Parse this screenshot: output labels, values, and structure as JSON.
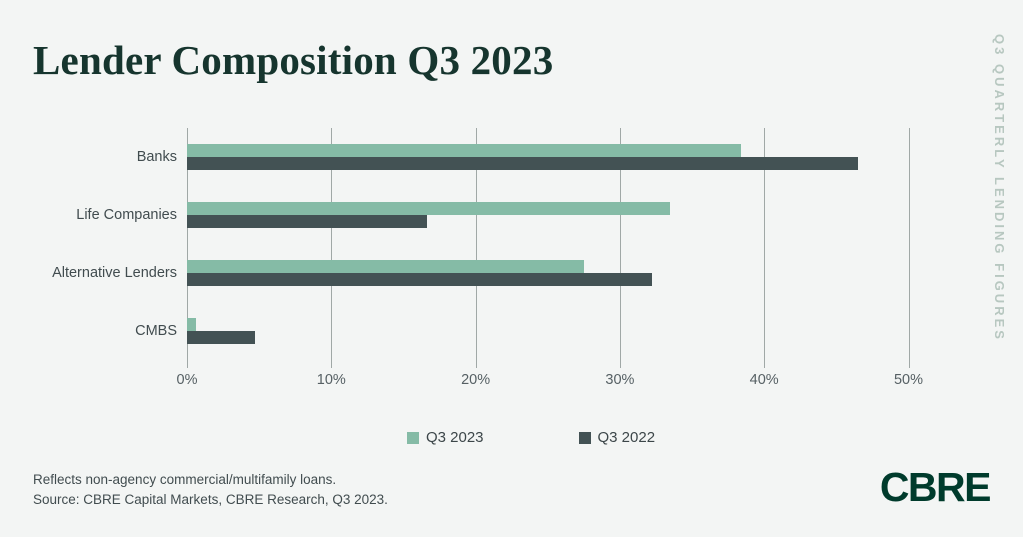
{
  "page": {
    "title": "Lender Composition Q3 2023",
    "side_label": "Q3 QUARTERLY LENDING FIGURES",
    "footnote_line1": "Reflects non-agency commercial/multifamily loans.",
    "footnote_line2": "Source: CBRE Capital Markets, CBRE Research, Q3 2023.",
    "logo_text": "CBRE"
  },
  "colors": {
    "background": "#f3f5f4",
    "title_text": "#16352e",
    "q3_2023_green": "#85bba6",
    "q3_2022_dark": "#435254",
    "gridline": "#a0a8a6",
    "axis_text": "#566064",
    "category_text": "#414c4f",
    "side_label_text": "#b7c7c0",
    "footnote_text": "#414c4f",
    "logo_green": "#003b2c"
  },
  "chart_data": {
    "type": "bar",
    "orientation": "horizontal",
    "title": "Lender Composition Q3 2023",
    "categories": [
      "Banks",
      "Life Companies",
      "Alternative Lenders",
      "CMBS"
    ],
    "series": [
      {
        "name": "Q3 2023",
        "color": "#85bba6",
        "values": [
          38.4,
          33.5,
          27.5,
          0.6
        ]
      },
      {
        "name": "Q3 2022",
        "color": "#435254",
        "values": [
          46.5,
          16.6,
          32.2,
          4.7
        ]
      }
    ],
    "unit": "%",
    "xlim": [
      0,
      50
    ],
    "x_ticks": [
      "0%",
      "10%",
      "20%",
      "30%",
      "40%",
      "50%"
    ],
    "grid": true,
    "legend_position": "bottom"
  }
}
